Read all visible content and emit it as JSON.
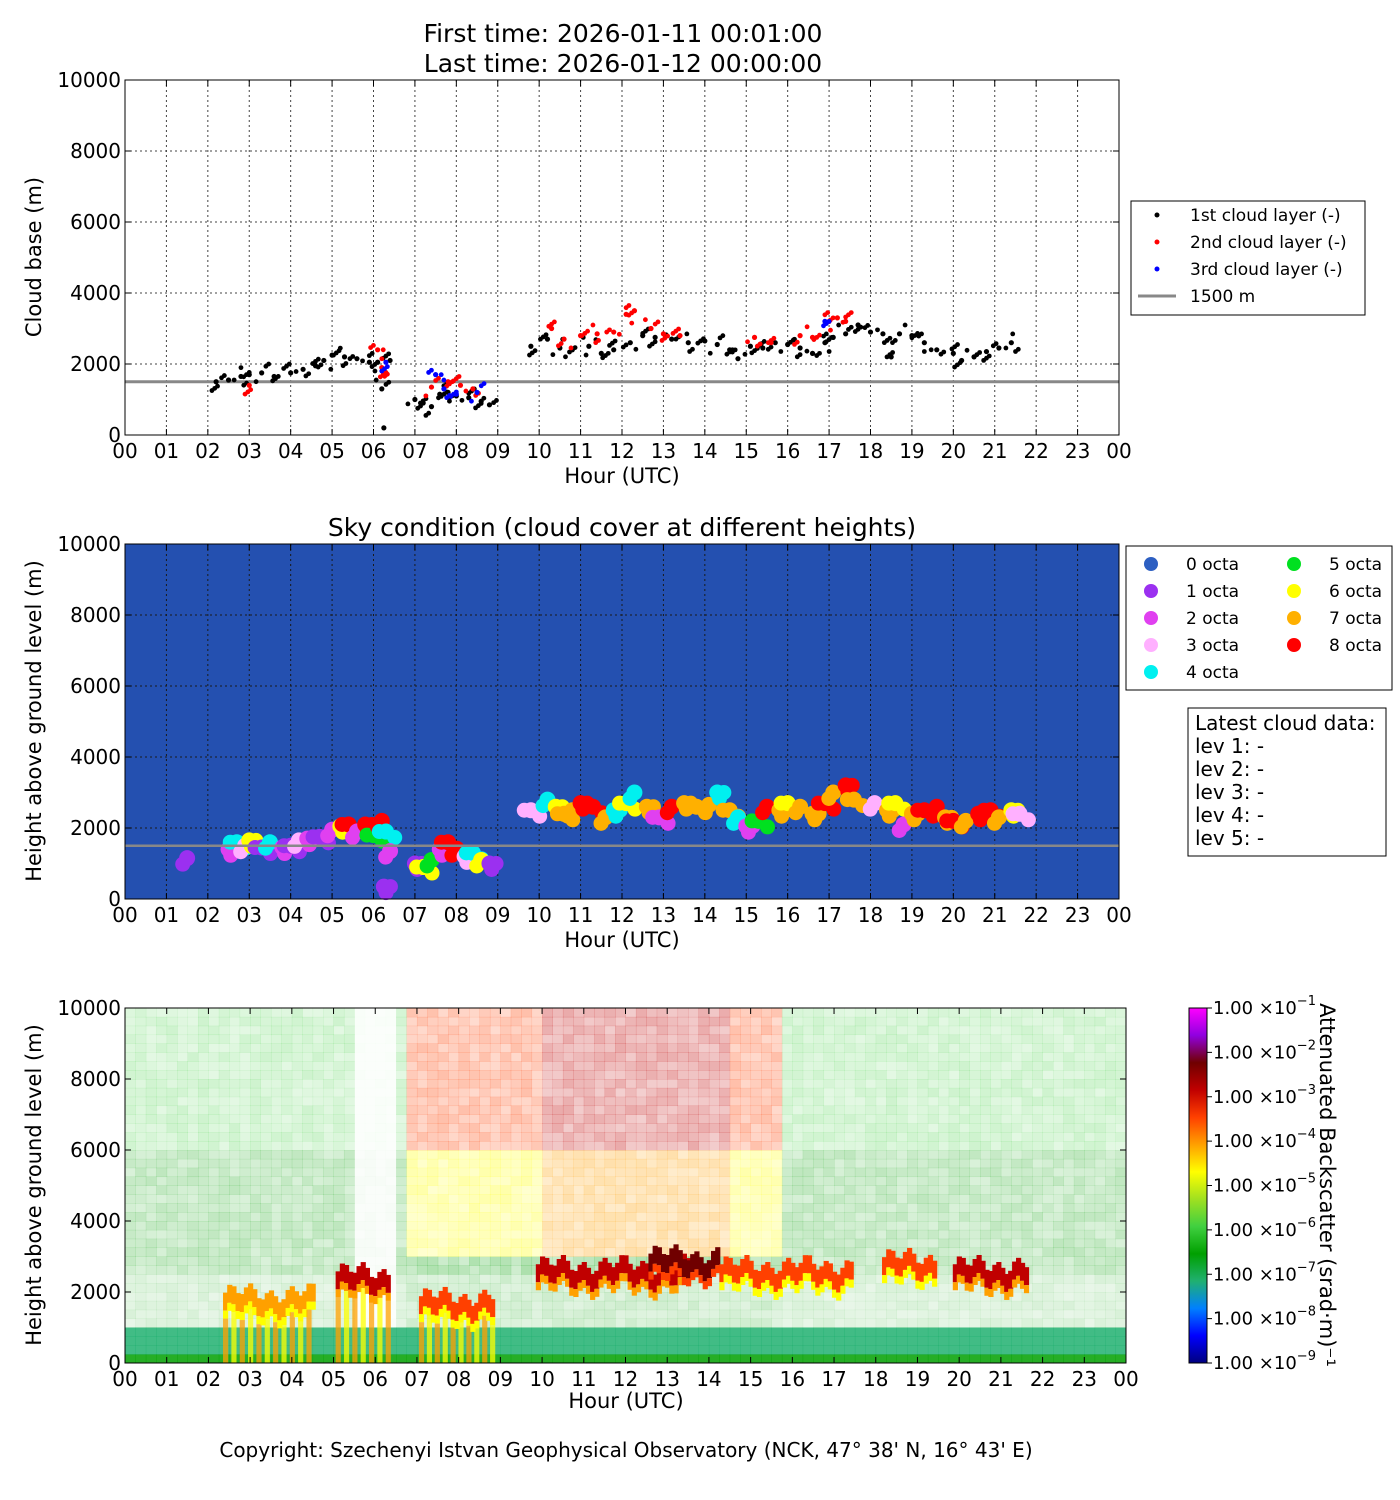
{
  "header": {
    "first_time": "First time: 2026-01-11 00:01:00",
    "last_time": "Last time: 2026-01-12 00:00:00"
  },
  "copyright": "Copyright: Szechenyi Istvan Geophysical Observatory (NCK, 47° 38' N, 16° 43' E)",
  "colors": {
    "sky_background": "#2450b0",
    "reference_line": "#888888",
    "layer1": "#000000",
    "layer2": "#ff0000",
    "layer3": "#0000ff",
    "octa": [
      "#2d5fc2",
      "#9b30f0",
      "#e040f0",
      "#ffb0ff",
      "#00f0f0",
      "#00e020",
      "#ffff00",
      "#ffb000",
      "#ff0000"
    ]
  },
  "chart_data": [
    {
      "type": "scatter",
      "title": "",
      "xlabel": "Hour (UTC)",
      "ylabel": "Cloud base (m)",
      "xlim": [
        0,
        24
      ],
      "ylim": [
        0,
        10000
      ],
      "x_ticks": [
        "00",
        "01",
        "02",
        "03",
        "04",
        "05",
        "06",
        "07",
        "08",
        "09",
        "10",
        "11",
        "12",
        "13",
        "14",
        "15",
        "16",
        "17",
        "18",
        "19",
        "20",
        "21",
        "22",
        "23",
        "00"
      ],
      "y_ticks": [
        "0",
        "2000",
        "4000",
        "6000",
        "8000",
        "10000"
      ],
      "grid": true,
      "legend_position": "right",
      "reference_line": {
        "name": "1500 m",
        "y": 1500
      },
      "series": [
        {
          "name": "1st cloud layer (-)",
          "color": "#000000",
          "points": [
            [
              2.2,
              1500
            ],
            [
              2.5,
              1550
            ],
            [
              2.8,
              1650
            ],
            [
              3.0,
              1700
            ],
            [
              3.3,
              1750
            ],
            [
              3.6,
              1650
            ],
            [
              4.0,
              1750
            ],
            [
              4.3,
              1850
            ],
            [
              4.6,
              1950
            ],
            [
              4.8,
              2100
            ],
            [
              5.0,
              2250
            ],
            [
              5.3,
              2200
            ],
            [
              5.6,
              2150
            ],
            [
              5.9,
              2050
            ],
            [
              6.1,
              2050
            ],
            [
              6.2,
              1300
            ],
            [
              6.25,
              200
            ],
            [
              6.4,
              2100
            ],
            [
              7.0,
              1000
            ],
            [
              7.2,
              900
            ],
            [
              7.4,
              800
            ],
            [
              7.6,
              1150
            ],
            [
              7.8,
              1200
            ],
            [
              8.0,
              1100
            ],
            [
              8.3,
              1050
            ],
            [
              8.6,
              950
            ],
            [
              8.8,
              850
            ],
            [
              9.8,
              2500
            ],
            [
              10.2,
              2700
            ],
            [
              10.5,
              2450
            ],
            [
              10.8,
              2400
            ],
            [
              11.2,
              2500
            ],
            [
              11.5,
              2300
            ],
            [
              11.8,
              2400
            ],
            [
              12.2,
              2600
            ],
            [
              12.5,
              2800
            ],
            [
              12.8,
              2750
            ],
            [
              13.2,
              2700
            ],
            [
              13.6,
              2600
            ],
            [
              14.0,
              2650
            ],
            [
              14.3,
              2550
            ],
            [
              14.6,
              2400
            ],
            [
              14.8,
              2150
            ],
            [
              15.1,
              2500
            ],
            [
              15.4,
              2450
            ],
            [
              15.7,
              2600
            ],
            [
              16.0,
              2550
            ],
            [
              16.3,
              2450
            ],
            [
              16.6,
              2300
            ],
            [
              16.9,
              2600
            ],
            [
              17.1,
              2750
            ],
            [
              17.4,
              2850
            ],
            [
              17.7,
              3100
            ],
            [
              18.0,
              2900
            ],
            [
              18.3,
              2850
            ],
            [
              18.5,
              2200
            ],
            [
              18.7,
              2850
            ],
            [
              19.0,
              2800
            ],
            [
              19.3,
              2600
            ],
            [
              19.6,
              2400
            ],
            [
              20.0,
              2300
            ],
            [
              20.2,
              2100
            ],
            [
              20.5,
              2200
            ],
            [
              20.8,
              2350
            ],
            [
              21.1,
              2450
            ],
            [
              21.4,
              2600
            ]
          ]
        },
        {
          "name": "2nd cloud layer (-)",
          "color": "#ff0000",
          "points": [
            [
              3.0,
              1400
            ],
            [
              6.1,
              2400
            ],
            [
              6.2,
              1900
            ],
            [
              6.3,
              1700
            ],
            [
              7.4,
              1350
            ],
            [
              7.8,
              1500
            ],
            [
              8.1,
              1400
            ],
            [
              8.4,
              1300
            ],
            [
              10.3,
              3000
            ],
            [
              10.6,
              2700
            ],
            [
              11.0,
              2800
            ],
            [
              11.4,
              2850
            ],
            [
              11.8,
              2900
            ],
            [
              12.1,
              3400
            ],
            [
              12.3,
              3500
            ],
            [
              12.7,
              3000
            ],
            [
              13.0,
              2850
            ],
            [
              13.4,
              2800
            ],
            [
              15.2,
              2750
            ],
            [
              15.6,
              2600
            ],
            [
              16.3,
              2800
            ],
            [
              16.6,
              2750
            ],
            [
              17.0,
              3200
            ],
            [
              17.2,
              3300
            ],
            [
              17.4,
              3200
            ]
          ]
        },
        {
          "name": "3rd cloud layer (-)",
          "color": "#0000ff",
          "points": [
            [
              6.3,
              2050
            ],
            [
              7.5,
              1700
            ],
            [
              7.7,
              1300
            ],
            [
              8.0,
              1150
            ],
            [
              8.5,
              1200
            ],
            [
              16.9,
              3200
            ]
          ]
        }
      ]
    },
    {
      "type": "scatter",
      "title": "Sky condition (cloud cover at different heights)",
      "xlabel": "Hour (UTC)",
      "ylabel": "Height above ground level (m)",
      "xlim": [
        0,
        24
      ],
      "ylim": [
        0,
        10000
      ],
      "x_ticks": [
        "00",
        "01",
        "02",
        "03",
        "04",
        "05",
        "06",
        "07",
        "08",
        "09",
        "10",
        "11",
        "12",
        "13",
        "14",
        "15",
        "16",
        "17",
        "18",
        "19",
        "20",
        "21",
        "22",
        "23",
        "00"
      ],
      "y_ticks": [
        "0",
        "2000",
        "4000",
        "6000",
        "8000",
        "10000"
      ],
      "grid": true,
      "legend_position": "right",
      "legend": [
        "0 octa",
        "1 octa",
        "2 octa",
        "3 octa",
        "4 octa",
        "5 octa",
        "6 octa",
        "7 octa",
        "8 octa"
      ],
      "reference_line": {
        "y": 1500
      },
      "info_box": {
        "title": "Latest cloud data:",
        "lines": [
          "lev 1: -",
          "lev 2: -",
          "lev 3: -",
          "lev 4: -",
          "lev 5: -"
        ]
      },
      "points": [
        [
          1.5,
          1150,
          1
        ],
        [
          2.5,
          1400,
          2
        ],
        [
          2.7,
          1600,
          4
        ],
        [
          2.9,
          1500,
          3
        ],
        [
          3.0,
          1650,
          6
        ],
        [
          3.3,
          1450,
          1
        ],
        [
          3.5,
          1600,
          4
        ],
        [
          3.8,
          1450,
          2
        ],
        [
          4.0,
          1500,
          1
        ],
        [
          4.2,
          1650,
          3
        ],
        [
          4.4,
          1700,
          2
        ],
        [
          4.7,
          1750,
          1
        ],
        [
          5.0,
          1950,
          2
        ],
        [
          5.2,
          2050,
          6
        ],
        [
          5.4,
          2100,
          8
        ],
        [
          5.6,
          1900,
          2
        ],
        [
          5.8,
          2100,
          8
        ],
        [
          6.0,
          1800,
          5
        ],
        [
          6.2,
          2200,
          8
        ],
        [
          6.25,
          350,
          1
        ],
        [
          6.3,
          1900,
          4
        ],
        [
          6.4,
          1350,
          2
        ],
        [
          7.0,
          1000,
          1
        ],
        [
          7.2,
          900,
          6
        ],
        [
          7.4,
          1100,
          5
        ],
        [
          7.6,
          1400,
          2
        ],
        [
          7.8,
          1600,
          8
        ],
        [
          8.0,
          1400,
          8
        ],
        [
          8.2,
          1200,
          3
        ],
        [
          8.4,
          1300,
          4
        ],
        [
          8.6,
          1100,
          6
        ],
        [
          8.8,
          1000,
          1
        ],
        [
          9.8,
          2500,
          3
        ],
        [
          10.2,
          2800,
          4
        ],
        [
          10.4,
          2600,
          6
        ],
        [
          10.6,
          2400,
          7
        ],
        [
          10.8,
          2500,
          7
        ],
        [
          11.0,
          2700,
          8
        ],
        [
          11.3,
          2600,
          8
        ],
        [
          11.6,
          2300,
          7
        ],
        [
          11.8,
          2500,
          4
        ],
        [
          12.1,
          2700,
          6
        ],
        [
          12.3,
          3000,
          4
        ],
        [
          12.6,
          2600,
          7
        ],
        [
          12.9,
          2300,
          2
        ],
        [
          13.2,
          2600,
          8
        ],
        [
          13.5,
          2700,
          7
        ],
        [
          13.8,
          2600,
          7
        ],
        [
          14.1,
          2650,
          7
        ],
        [
          14.3,
          3000,
          4
        ],
        [
          14.6,
          2500,
          7
        ],
        [
          14.8,
          2300,
          4
        ],
        [
          15.0,
          2050,
          2
        ],
        [
          15.3,
          2200,
          5
        ],
        [
          15.5,
          2600,
          8
        ],
        [
          15.8,
          2500,
          7
        ],
        [
          16.0,
          2700,
          6
        ],
        [
          16.3,
          2600,
          7
        ],
        [
          16.6,
          2400,
          7
        ],
        [
          16.9,
          2700,
          8
        ],
        [
          17.1,
          3000,
          7
        ],
        [
          17.4,
          3200,
          8
        ],
        [
          17.6,
          2800,
          7
        ],
        [
          18.1,
          2700,
          3
        ],
        [
          18.4,
          2500,
          7
        ],
        [
          18.6,
          2700,
          6
        ],
        [
          18.8,
          2100,
          2
        ],
        [
          19.0,
          2400,
          7
        ],
        [
          19.3,
          2500,
          8
        ],
        [
          19.6,
          2600,
          8
        ],
        [
          19.8,
          2300,
          7
        ],
        [
          20.0,
          2200,
          8
        ],
        [
          20.3,
          2200,
          7
        ],
        [
          20.6,
          2400,
          8
        ],
        [
          20.9,
          2500,
          8
        ],
        [
          21.1,
          2300,
          7
        ],
        [
          21.4,
          2500,
          6
        ],
        [
          21.6,
          2400,
          3
        ]
      ]
    },
    {
      "type": "heatmap",
      "title": "",
      "xlabel": "Hour (UTC)",
      "ylabel": "Height above ground level (m)",
      "xlim": [
        0,
        24
      ],
      "ylim": [
        0,
        10000
      ],
      "x_ticks": [
        "00",
        "01",
        "02",
        "03",
        "04",
        "05",
        "06",
        "07",
        "08",
        "09",
        "10",
        "11",
        "12",
        "13",
        "14",
        "15",
        "16",
        "17",
        "18",
        "19",
        "20",
        "21",
        "22",
        "23",
        "00"
      ],
      "y_ticks": [
        "0",
        "2000",
        "4000",
        "6000",
        "8000",
        "10000"
      ],
      "colorbar_label": "Attenuated Backscatter (srad·m)⁻¹",
      "colorbar_ticks": [
        {
          "mant": "1.00 ×10",
          "exp": "−1"
        },
        {
          "mant": "1.00 ×10",
          "exp": "−2"
        },
        {
          "mant": "1.00 ×10",
          "exp": "−3"
        },
        {
          "mant": "1.00 ×10",
          "exp": "−4"
        },
        {
          "mant": "1.00 ×10",
          "exp": "−5"
        },
        {
          "mant": "1.00 ×10",
          "exp": "−6"
        },
        {
          "mant": "1.00 ×10",
          "exp": "−7"
        },
        {
          "mant": "1.00 ×10",
          "exp": "−8"
        },
        {
          "mant": "1.00 ×10",
          "exp": "−9"
        }
      ],
      "colormap": [
        "#00007f",
        "#0000ff",
        "#0080ff",
        "#20b070",
        "#00a000",
        "#40d040",
        "#a0e020",
        "#ffff00",
        "#ffa000",
        "#ff4000",
        "#c00000",
        "#700000",
        "#9000e0",
        "#ff00ff"
      ],
      "boundary_layer_top_m": 900,
      "cloud_features": [
        {
          "x_start": 2.3,
          "x_end": 4.5,
          "height": 1700,
          "level": 8
        },
        {
          "x_start": 5.0,
          "x_end": 6.3,
          "height": 2300,
          "level": 10
        },
        {
          "x_start": 7.0,
          "x_end": 8.8,
          "height": 1600,
          "level": 9
        },
        {
          "x_start": 9.8,
          "x_end": 13.5,
          "height": 2500,
          "level": 10
        },
        {
          "x_start": 12.5,
          "x_end": 14.2,
          "height": 2800,
          "level": 11
        },
        {
          "x_start": 14.2,
          "x_end": 17.4,
          "height": 2500,
          "level": 9
        },
        {
          "x_start": 18.1,
          "x_end": 19.4,
          "height": 2700,
          "level": 9
        },
        {
          "x_start": 19.8,
          "x_end": 21.6,
          "height": 2500,
          "level": 10
        }
      ]
    }
  ]
}
